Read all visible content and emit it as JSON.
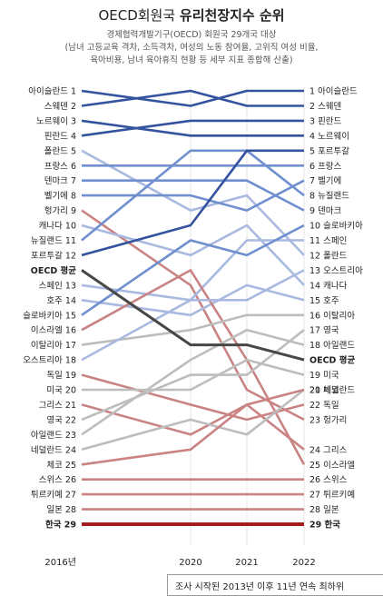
{
  "title": {
    "part1": "OECD회원국 ",
    "part2": "유리천장지수 순위"
  },
  "subtitle": [
    "경제협력개발기구(OECD) 회원국 29개국 대상",
    "(남녀 고등교육 격차, 소득격차, 여성의 노동 참여율, 고위직 여성 비율,",
    "육아비용, 남녀 육아휴직 현황 등 세부 지표 종합해 산출)"
  ],
  "note": "조사 시작된 2013년 이후 11년 연속 최하위",
  "colors": {
    "top": "#34539f",
    "mid": "#6f8fcf",
    "light": "#a9b9e0",
    "red": "#c98383",
    "darkred": "#a31d1d",
    "grey": "#bdbdbd",
    "avg": "#474747"
  },
  "chart_data": {
    "type": "line",
    "x": [
      "2016년",
      "2020",
      "2021",
      "2022"
    ],
    "ylim": [
      1,
      29
    ],
    "y_reversed": true,
    "series": [
      {
        "name": "아이슬란드",
        "values": [
          1,
          2,
          1,
          1
        ],
        "color": "#34539f",
        "label_start": "아이슬란드 1",
        "label_end": "1 아이슬란드"
      },
      {
        "name": "스웨덴",
        "values": [
          2,
          1,
          2,
          2
        ],
        "color": "#34539f",
        "label_start": "스웨덴 2",
        "label_end": "2 스웨덴"
      },
      {
        "name": "노르웨이",
        "values": [
          3,
          4,
          4,
          4
        ],
        "color": "#34539f",
        "label_start": "노르웨이 3",
        "label_end": "4 노르웨이"
      },
      {
        "name": "핀란드",
        "values": [
          4,
          3,
          3,
          3
        ],
        "color": "#34539f",
        "label_start": "핀란드 4",
        "label_end": "3 핀란드"
      },
      {
        "name": "폴란드",
        "values": [
          5,
          9,
          8,
          12
        ],
        "color": "#a9b9e0",
        "label_start": "폴란드 5",
        "label_end": "12 폴란드"
      },
      {
        "name": "프랑스",
        "values": [
          6,
          6,
          6,
          6
        ],
        "color": "#6f8fcf",
        "label_start": "프랑스 6",
        "label_end": "6 프랑스"
      },
      {
        "name": "덴마크",
        "values": [
          7,
          7,
          7,
          9
        ],
        "color": "#6f8fcf",
        "label_start": "덴마크 7",
        "label_end": "9 덴마크"
      },
      {
        "name": "벨기에",
        "values": [
          8,
          8,
          9,
          7
        ],
        "color": "#6f8fcf",
        "label_start": "벨기에 8",
        "label_end": "7 벨기에"
      },
      {
        "name": "헝가리",
        "values": [
          9,
          14,
          21,
          23
        ],
        "color": "#c98383",
        "label_start": "헝가리 9",
        "label_end": "23 헝가리"
      },
      {
        "name": "캐나다",
        "values": [
          10,
          12,
          10,
          14
        ],
        "color": "#a9b9e0",
        "label_start": "캐나다 10",
        "label_end": "14 캐나다"
      },
      {
        "name": "뉴질랜드",
        "values": [
          11,
          5,
          5,
          8
        ],
        "color": "#6f8fcf",
        "label_start": "뉴질랜드 11",
        "label_end": "8 뉴질랜드"
      },
      {
        "name": "포르투갈",
        "values": [
          12,
          10,
          5,
          5
        ],
        "color": "#34539f",
        "label_start": "포르투갈 12",
        "label_end": "5 포르투갈"
      },
      {
        "name": "OECD 평균",
        "values": [
          13,
          18,
          18,
          19
        ],
        "color": "#474747",
        "label_start": "OECD 평균",
        "label_end": "OECD 평균"
      },
      {
        "name": "스페인",
        "values": [
          14,
          15,
          11,
          11
        ],
        "color": "#a9b9e0",
        "label_start": "스페인 13",
        "label_end": "11 스페인"
      },
      {
        "name": "호주",
        "values": [
          15,
          16,
          14,
          15
        ],
        "color": "#a9b9e0",
        "label_start": "호주 14",
        "label_end": "15 호주"
      },
      {
        "name": "슬로바키아",
        "values": [
          16,
          11,
          12,
          10
        ],
        "color": "#6f8fcf",
        "label_start": "슬로바키아 15",
        "label_end": "10 슬로바키아"
      },
      {
        "name": "이스라엘",
        "values": [
          17,
          13,
          19,
          26
        ],
        "color": "#c98383",
        "label_start": "이스라엘 16",
        "label_end": "25 이스라엘"
      },
      {
        "name": "이탈리아",
        "values": [
          18,
          17,
          16,
          16
        ],
        "color": "#bdbdbd",
        "label_start": "이탈리아 17",
        "label_end": "16 이탈리아"
      },
      {
        "name": "오스트리아",
        "values": [
          19,
          15,
          15,
          13
        ],
        "color": "#a9b9e0",
        "label_start": "오스트리아 18",
        "label_end": "13 오스트리아"
      },
      {
        "name": "독일",
        "values": [
          20,
          22,
          23,
          22
        ],
        "color": "#c98383",
        "label_start": "독일 19",
        "label_end": "22 독일"
      },
      {
        "name": "미국",
        "values": [
          21,
          21,
          19,
          20
        ],
        "color": "#bdbdbd",
        "label_start": "미국 20",
        "label_end": "19 미국"
      },
      {
        "name": "그리스",
        "values": [
          22,
          24,
          22,
          25
        ],
        "color": "#c98383",
        "label_start": "그리스 21",
        "label_end": "24 그리스"
      },
      {
        "name": "영국",
        "values": [
          23,
          20,
          20,
          17
        ],
        "color": "#bdbdbd",
        "label_start": "영국 22",
        "label_end": "17 영국"
      },
      {
        "name": "아일랜드",
        "values": [
          24,
          19,
          17,
          18
        ],
        "color": "#bdbdbd",
        "label_start": "아일랜드 23",
        "label_end": "18 아일랜드"
      },
      {
        "name": "네덜란드",
        "values": [
          25,
          23,
          24,
          21
        ],
        "color": "#bdbdbd",
        "label_start": "네덜란드 24",
        "label_end": "20 네덜란드"
      },
      {
        "name": "체코",
        "values": [
          26,
          25,
          22,
          21
        ],
        "color": "#c98383",
        "label_start": "체코 25",
        "label_end": "21 체코"
      },
      {
        "name": "스위스",
        "values": [
          27,
          27,
          27,
          27
        ],
        "color": "#c98383",
        "label_start": "스위스 26",
        "label_end": "26 스위스"
      },
      {
        "name": "튀르키예",
        "values": [
          28,
          28,
          28,
          28
        ],
        "color": "#c98383",
        "label_start": "튀르키예 27",
        "label_end": "27 튀르키예"
      },
      {
        "name": "일본",
        "values": [
          29,
          29,
          29,
          29
        ],
        "color": "#c98383",
        "label_start": "일본 28",
        "label_end": "28 일본"
      },
      {
        "name": "한국",
        "values": [
          30,
          30,
          30,
          30
        ],
        "color": "#a31d1d",
        "label_start": "한국 29",
        "label_end": "29 한국"
      }
    ]
  }
}
